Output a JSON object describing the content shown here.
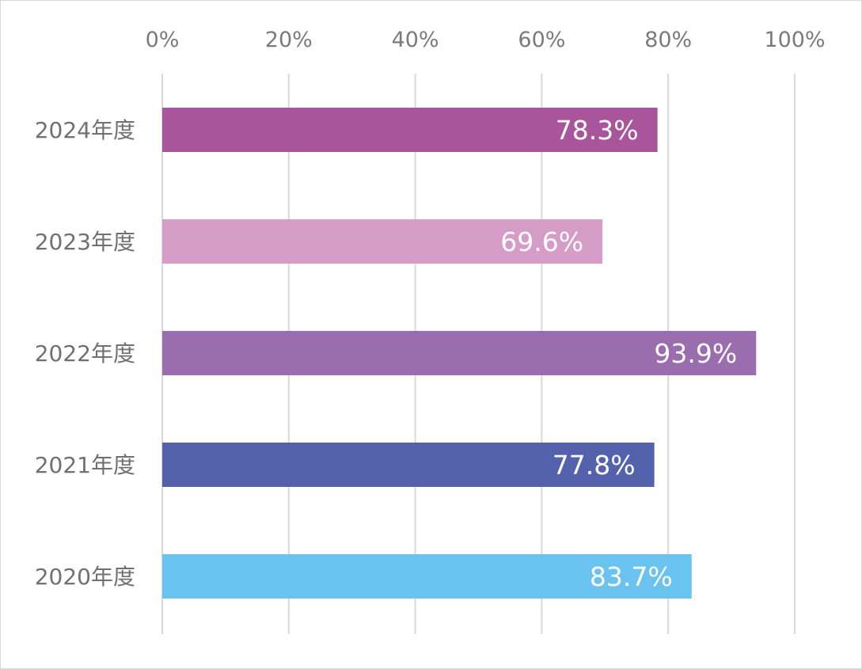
{
  "chart_data": {
    "type": "bar",
    "orientation": "horizontal",
    "title": "",
    "xlabel": "",
    "ylabel": "",
    "xlim": [
      0,
      100
    ],
    "x_ticks": [
      "0%",
      "20%",
      "40%",
      "60%",
      "80%",
      "100%"
    ],
    "x_tick_values": [
      0,
      20,
      40,
      60,
      80,
      100
    ],
    "grid": true,
    "legend": "none",
    "categories": [
      "2024年度",
      "2023年度",
      "2022年度",
      "2021年度",
      "2020年度"
    ],
    "values": [
      78.3,
      69.6,
      93.9,
      77.8,
      83.7
    ],
    "value_labels": [
      "78.3%",
      "69.6%",
      "93.9%",
      "77.8%",
      "83.7%"
    ],
    "colors": [
      "#a8559b",
      "#d49cc6",
      "#9a6eae",
      "#5461ad",
      "#6ac3ee"
    ]
  }
}
